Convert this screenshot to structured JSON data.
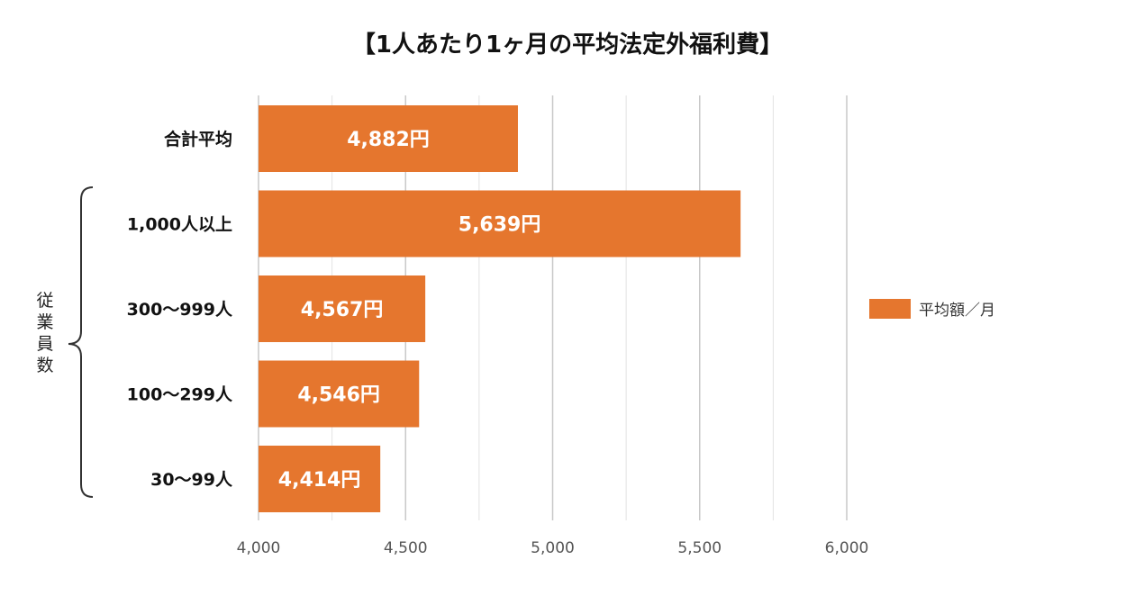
{
  "chart_data": {
    "type": "bar",
    "orientation": "horizontal",
    "title": "【1人あたり1ヶ月の平均法定外福利費】",
    "categories": [
      "合計平均",
      "1,000人以上",
      "300〜999人",
      "100〜299人",
      "30〜99人"
    ],
    "group_label": "従業員数",
    "series": [
      {
        "name": "平均額／月",
        "values": [
          4882,
          5639,
          4567,
          4546,
          4414
        ],
        "color": "#E5762E"
      }
    ],
    "data_labels": [
      "4,882円",
      "5,639円",
      "4,567円",
      "4,546円",
      "4,414円"
    ],
    "xlim": [
      4000,
      6000
    ],
    "xticks": [
      4000,
      4500,
      5000,
      5500,
      6000
    ],
    "xtick_labels": [
      "4,000",
      "4,500",
      "5,000",
      "5,500",
      "6,000"
    ],
    "minor_grid_step": 250,
    "grid": true,
    "legend_position": "right"
  }
}
